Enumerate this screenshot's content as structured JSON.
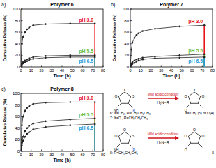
{
  "panel_labels": [
    "a)",
    "b)",
    "c)"
  ],
  "chart_data": [
    {
      "type": "line",
      "title": "Polymer 6",
      "x_label": "Time (h)",
      "y_label": "Cumulative Release (%)",
      "x": [
        0,
        1,
        2,
        4,
        6,
        8,
        12,
        24,
        48,
        72
      ],
      "xlim": [
        0,
        80
      ],
      "xticks": [
        0,
        10,
        20,
        30,
        40,
        50,
        60,
        70,
        80
      ],
      "ylim": [
        0,
        100
      ],
      "yticks": [
        0,
        20,
        40,
        60,
        80,
        100
      ],
      "grid": false,
      "series": [
        {
          "name": "pH 3.0",
          "color": "#e8141b",
          "marker": "circle",
          "values": [
            0,
            40,
            52,
            60,
            65,
            68,
            72,
            74,
            75,
            75
          ]
        },
        {
          "name": "pH 5.5",
          "color": "#6cbf3c",
          "marker": "circle",
          "values": [
            0,
            5,
            8,
            11,
            13,
            15,
            17,
            19,
            20,
            20
          ]
        },
        {
          "name": "pH 6.5",
          "color": "#1f9bd7",
          "marker": "circle",
          "values": [
            0,
            4,
            6,
            8,
            10,
            12,
            14,
            16,
            17,
            17
          ]
        }
      ]
    },
    {
      "type": "line",
      "title": "Polymer 7",
      "x_label": "Time (h)",
      "y_label": "Cumulative Release (%)",
      "x": [
        0,
        1,
        2,
        4,
        6,
        8,
        12,
        24,
        48,
        72
      ],
      "xlim": [
        0,
        80
      ],
      "xticks": [
        0,
        10,
        20,
        30,
        40,
        50,
        60,
        70,
        80
      ],
      "ylim": [
        0,
        100
      ],
      "yticks": [
        0,
        20,
        40,
        60,
        80,
        100
      ],
      "grid": false,
      "series": [
        {
          "name": "pH 3.0",
          "color": "#e8141b",
          "marker": "circle",
          "values": [
            0,
            30,
            42,
            50,
            55,
            58,
            62,
            66,
            70,
            72
          ]
        },
        {
          "name": "pH 5.5",
          "color": "#6cbf3c",
          "marker": "circle",
          "values": [
            0,
            5,
            8,
            11,
            13,
            14,
            16,
            18,
            20,
            22
          ]
        },
        {
          "name": "pH 6.5",
          "color": "#1f9bd7",
          "marker": "circle",
          "values": [
            0,
            3,
            5,
            7,
            9,
            11,
            13,
            15,
            16,
            17
          ]
        }
      ]
    },
    {
      "type": "line",
      "title": "Polymer 8",
      "x_label": "Time (h)",
      "y_label": "Cumulative Release (%)",
      "x": [
        0,
        1,
        2,
        4,
        6,
        8,
        12,
        24,
        48,
        72
      ],
      "xlim": [
        0,
        80
      ],
      "xticks": [
        0,
        10,
        20,
        30,
        40,
        50,
        60,
        70,
        80
      ],
      "ylim": [
        0,
        100
      ],
      "yticks": [
        0,
        20,
        40,
        60,
        80,
        100
      ],
      "grid": false,
      "series": [
        {
          "name": "pH 3.0",
          "color": "#e8141b",
          "marker": "circle",
          "values": [
            0,
            45,
            60,
            70,
            75,
            78,
            82,
            84,
            85,
            85
          ]
        },
        {
          "name": "pH 5.5",
          "color": "#6cbf3c",
          "marker": "circle",
          "values": [
            0,
            15,
            25,
            35,
            40,
            44,
            48,
            52,
            55,
            57
          ]
        },
        {
          "name": "pH 6.5",
          "color": "#1f9bd7",
          "marker": "circle",
          "values": [
            0,
            10,
            18,
            25,
            30,
            33,
            38,
            42,
            45,
            47
          ]
        }
      ]
    }
  ],
  "scheme": {
    "rows": [
      {
        "reactant_atoms": [
          "X",
          "S",
          "O",
          "NH",
          "R"
        ],
        "product_atoms": [
          "X",
          "O",
          "O",
          "O"
        ],
        "condition": "Mild acidic condition",
        "reagent": "H₂N−R",
        "reactant_labels": [
          "6: X=CH₂, R=CH₂CH₂CH₃",
          "7: X=O , R=CH₂CH₂CH₃"
        ],
        "product_label": "X= CH₂ (5) or O(4)"
      },
      {
        "reactant_atoms": [
          "O",
          "S",
          "O",
          "NH",
          "R"
        ],
        "product_atoms": [
          "O",
          "O",
          "O",
          "O"
        ],
        "condition": "Mild acidic condition",
        "reagent": "H₂N−R",
        "reactant_labels": [
          "8: R=CH₂CH₂CH₃"
        ],
        "product_label": "5"
      }
    ]
  }
}
